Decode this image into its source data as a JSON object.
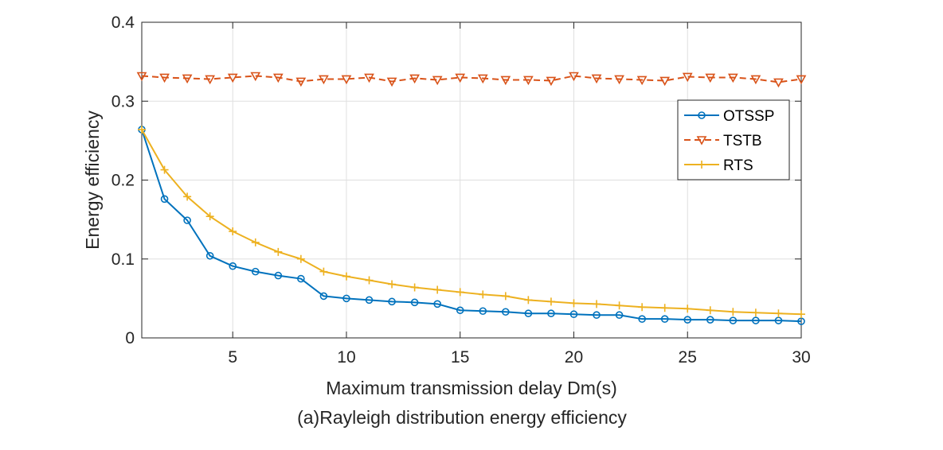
{
  "chart_data": {
    "type": "line",
    "xlabel": "Maximum transmission delay Dm(s)",
    "ylabel": "Energy efficiency",
    "caption": "(a)Rayleigh distribution energy efficiency",
    "xlim": [
      1,
      30
    ],
    "ylim": [
      0,
      0.4
    ],
    "xticks": [
      5,
      10,
      15,
      20,
      25,
      30
    ],
    "xtick_labels": [
      "5",
      "10",
      "15",
      "20",
      "25",
      "30"
    ],
    "yticks": [
      0,
      0.1,
      0.2,
      0.3,
      0.4
    ],
    "ytick_labels": [
      "0",
      "0.1",
      "0.2",
      "0.3",
      "0.4"
    ],
    "grid": true,
    "legend_position": "right",
    "x": [
      1,
      2,
      3,
      4,
      5,
      6,
      7,
      8,
      9,
      10,
      11,
      12,
      13,
      14,
      15,
      16,
      17,
      18,
      19,
      20,
      21,
      22,
      23,
      24,
      25,
      26,
      27,
      28,
      29,
      30
    ],
    "series": [
      {
        "name": "OTSSP",
        "color": "#0072BD",
        "line_style": "solid",
        "marker": "circle",
        "values": [
          0.264,
          0.176,
          0.149,
          0.104,
          0.091,
          0.084,
          0.079,
          0.075,
          0.053,
          0.05,
          0.048,
          0.046,
          0.045,
          0.043,
          0.035,
          0.034,
          0.033,
          0.031,
          0.031,
          0.03,
          0.029,
          0.029,
          0.024,
          0.024,
          0.023,
          0.023,
          0.022,
          0.022,
          0.022,
          0.021
        ]
      },
      {
        "name": "TSTB",
        "color": "#D95319",
        "line_style": "dashed",
        "marker": "triangle-down",
        "values": [
          0.332,
          0.33,
          0.329,
          0.328,
          0.33,
          0.332,
          0.33,
          0.325,
          0.328,
          0.328,
          0.33,
          0.325,
          0.329,
          0.327,
          0.33,
          0.329,
          0.327,
          0.327,
          0.326,
          0.332,
          0.329,
          0.328,
          0.327,
          0.326,
          0.331,
          0.33,
          0.33,
          0.328,
          0.324,
          0.328
        ]
      },
      {
        "name": "RTS",
        "color": "#EDB120",
        "line_style": "solid",
        "marker": "plus",
        "values": [
          0.264,
          0.213,
          0.179,
          0.154,
          0.135,
          0.121,
          0.109,
          0.1,
          0.084,
          0.078,
          0.073,
          0.068,
          0.064,
          0.061,
          0.058,
          0.055,
          0.053,
          0.048,
          0.046,
          0.044,
          0.043,
          0.041,
          0.039,
          0.038,
          0.037,
          0.035,
          0.033,
          0.032,
          0.031,
          0.03
        ]
      }
    ]
  }
}
